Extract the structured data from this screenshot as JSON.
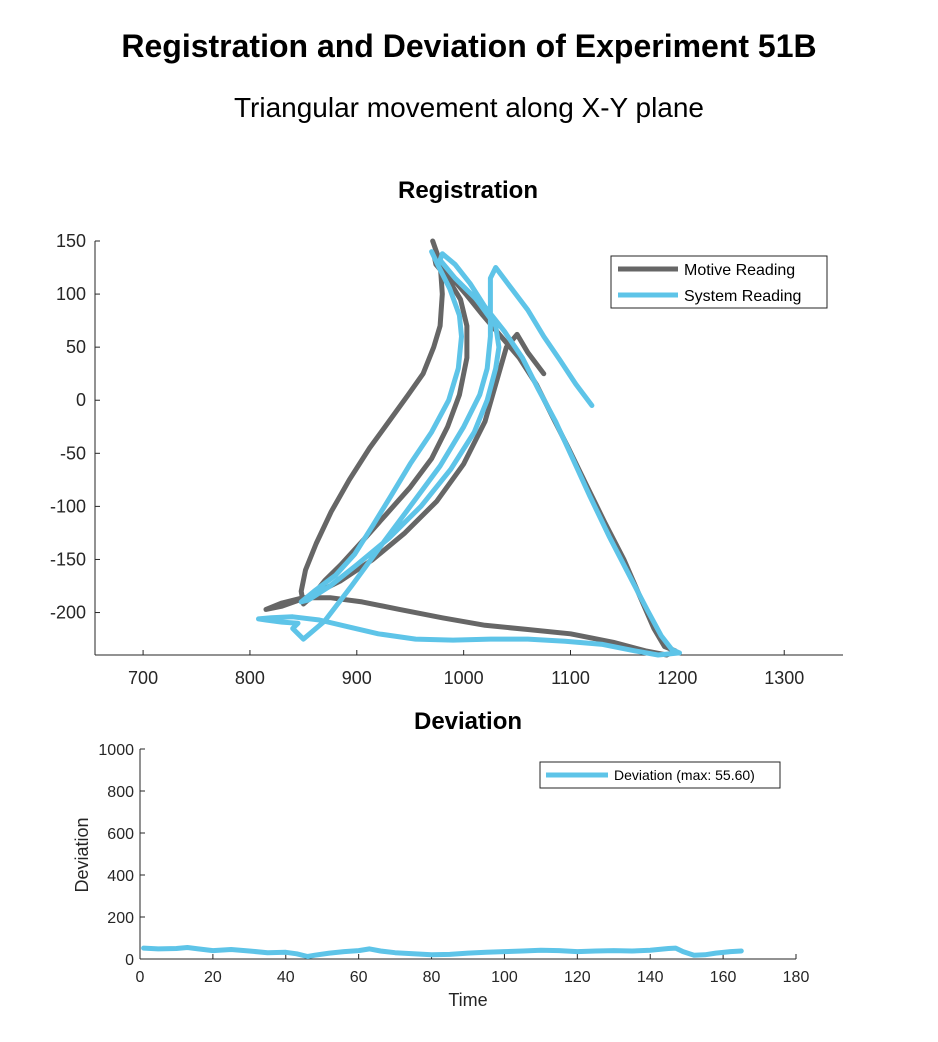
{
  "figure": {
    "title": "Registration and Deviation of Experiment 51B",
    "subtitle": "Triangular movement along X-Y plane"
  },
  "colors": {
    "motive": "#666666",
    "system": "#5EC4E8",
    "axis": "#262626"
  },
  "chart_data": [
    {
      "type": "line",
      "title": "Registration",
      "xlabel": "",
      "ylabel": "",
      "xlim": [
        655,
        1355
      ],
      "ylim": [
        -240,
        150
      ],
      "xticks": [
        700,
        800,
        900,
        1000,
        1100,
        1200,
        1300
      ],
      "yticks": [
        150,
        100,
        50,
        0,
        -50,
        -100,
        -150,
        -200
      ],
      "legend": "top-right",
      "series": [
        {
          "name": "Motive Reading",
          "color": "#666666",
          "points": [
            [
              971,
              150
            ],
            [
              978,
              130
            ],
            [
              980,
              100
            ],
            [
              978,
              70
            ],
            [
              972,
              50
            ],
            [
              962,
              25
            ],
            [
              948,
              5
            ],
            [
              930,
              -20
            ],
            [
              912,
              -45
            ],
            [
              893,
              -75
            ],
            [
              876,
              -105
            ],
            [
              862,
              -135
            ],
            [
              852,
              -160
            ],
            [
              848,
              -180
            ],
            [
              850,
              -192
            ],
            [
              858,
              -185
            ],
            [
              870,
              -170
            ],
            [
              885,
              -155
            ],
            [
              905,
              -133
            ],
            [
              927,
              -108
            ],
            [
              950,
              -82
            ],
            [
              970,
              -55
            ],
            [
              985,
              -25
            ],
            [
              996,
              5
            ],
            [
              1003,
              40
            ],
            [
              1003,
              70
            ],
            [
              997,
              95
            ],
            [
              985,
              115
            ],
            [
              974,
              128
            ],
            [
              973,
              133
            ],
            [
              985,
              120
            ],
            [
              1002,
              100
            ],
            [
              1018,
              80
            ],
            [
              1035,
              60
            ],
            [
              1052,
              40
            ],
            [
              1068,
              15
            ],
            [
              1083,
              -15
            ],
            [
              1098,
              -45
            ],
            [
              1115,
              -80
            ],
            [
              1132,
              -115
            ],
            [
              1150,
              -150
            ],
            [
              1165,
              -185
            ],
            [
              1178,
              -215
            ],
            [
              1188,
              -232
            ],
            [
              1198,
              -236
            ],
            [
              1190,
              -240
            ],
            [
              1170,
              -236
            ],
            [
              1140,
              -228
            ],
            [
              1100,
              -220
            ],
            [
              1060,
              -216
            ],
            [
              1020,
              -212
            ],
            [
              980,
              -205
            ],
            [
              940,
              -197
            ],
            [
              905,
              -190
            ],
            [
              875,
              -186
            ],
            [
              850,
              -186
            ],
            [
              830,
              -191
            ],
            [
              815,
              -197
            ],
            [
              830,
              -194
            ],
            [
              855,
              -185
            ],
            [
              885,
              -170
            ],
            [
              915,
              -150
            ],
            [
              945,
              -125
            ],
            [
              975,
              -95
            ],
            [
              1000,
              -60
            ],
            [
              1020,
              -20
            ],
            [
              1030,
              15
            ],
            [
              1040,
              50
            ],
            [
              1050,
              62
            ],
            [
              1060,
              45
            ],
            [
              1075,
              25
            ]
          ]
        },
        {
          "name": "System Reading",
          "color": "#5EC4E8",
          "points": [
            [
              970,
              140
            ],
            [
              977,
              125
            ],
            [
              987,
              105
            ],
            [
              996,
              80
            ],
            [
              998,
              60
            ],
            [
              995,
              30
            ],
            [
              986,
              0
            ],
            [
              970,
              -30
            ],
            [
              950,
              -60
            ],
            [
              932,
              -90
            ],
            [
              915,
              -118
            ],
            [
              898,
              -145
            ],
            [
              880,
              -165
            ],
            [
              860,
              -180
            ],
            [
              848,
              -190
            ],
            [
              855,
              -188
            ],
            [
              875,
              -175
            ],
            [
              900,
              -155
            ],
            [
              930,
              -130
            ],
            [
              960,
              -100
            ],
            [
              988,
              -65
            ],
            [
              1010,
              -30
            ],
            [
              1022,
              0
            ],
            [
              1030,
              30
            ],
            [
              1033,
              50
            ],
            [
              1030,
              70
            ],
            [
              1012,
              95
            ],
            [
              992,
              115
            ],
            [
              978,
              132
            ],
            [
              980,
              138
            ],
            [
              992,
              128
            ],
            [
              1006,
              110
            ],
            [
              1020,
              88
            ],
            [
              1038,
              65
            ],
            [
              1055,
              40
            ],
            [
              1070,
              10
            ],
            [
              1086,
              -20
            ],
            [
              1102,
              -55
            ],
            [
              1118,
              -90
            ],
            [
              1136,
              -128
            ],
            [
              1155,
              -165
            ],
            [
              1172,
              -198
            ],
            [
              1185,
              -222
            ],
            [
              1195,
              -235
            ],
            [
              1202,
              -238
            ],
            [
              1182,
              -240
            ],
            [
              1160,
              -236
            ],
            [
              1130,
              -230
            ],
            [
              1095,
              -227
            ],
            [
              1060,
              -225
            ],
            [
              1025,
              -225
            ],
            [
              990,
              -226
            ],
            [
              955,
              -225
            ],
            [
              920,
              -220
            ],
            [
              890,
              -213
            ],
            [
              865,
              -207
            ],
            [
              840,
              -204
            ],
            [
              820,
              -205
            ],
            [
              808,
              -206
            ],
            [
              815,
              -207
            ],
            [
              830,
              -209
            ],
            [
              845,
              -210
            ],
            [
              840,
              -215
            ],
            [
              850,
              -225
            ],
            [
              870,
              -208
            ],
            [
              895,
              -175
            ],
            [
              922,
              -138
            ],
            [
              950,
              -100
            ],
            [
              978,
              -62
            ],
            [
              1000,
              -25
            ],
            [
              1015,
              5
            ],
            [
              1022,
              30
            ],
            [
              1025,
              60
            ],
            [
              1025,
              90
            ],
            [
              1025,
              115
            ],
            [
              1030,
              125
            ],
            [
              1045,
              105
            ],
            [
              1060,
              85
            ],
            [
              1075,
              60
            ],
            [
              1090,
              38
            ],
            [
              1105,
              15
            ],
            [
              1120,
              -5
            ]
          ]
        }
      ]
    },
    {
      "type": "line",
      "title": "Deviation",
      "xlabel": "Time",
      "ylabel": "Deviation",
      "xlim": [
        0,
        180
      ],
      "ylim": [
        0,
        1000
      ],
      "xticks": [
        0,
        20,
        40,
        60,
        80,
        100,
        120,
        140,
        160,
        180
      ],
      "yticks": [
        0,
        200,
        400,
        600,
        800,
        1000
      ],
      "legend": "top-right",
      "series": [
        {
          "name": "Deviation (max: 55.60)",
          "color": "#5EC4E8",
          "x": [
            1,
            5,
            10,
            13,
            16,
            20,
            25,
            30,
            35,
            40,
            43,
            46,
            48,
            52,
            56,
            60,
            63,
            66,
            70,
            75,
            80,
            85,
            90,
            95,
            100,
            105,
            110,
            115,
            120,
            125,
            130,
            135,
            140,
            145,
            147,
            149,
            152,
            155,
            158,
            162,
            165
          ],
          "y": [
            52,
            48,
            50,
            55,
            48,
            40,
            45,
            38,
            30,
            32,
            25,
            12,
            18,
            28,
            35,
            40,
            48,
            38,
            30,
            25,
            20,
            22,
            28,
            32,
            35,
            38,
            42,
            40,
            35,
            38,
            40,
            38,
            42,
            50,
            52,
            35,
            18,
            20,
            28,
            35,
            38
          ]
        }
      ]
    }
  ]
}
